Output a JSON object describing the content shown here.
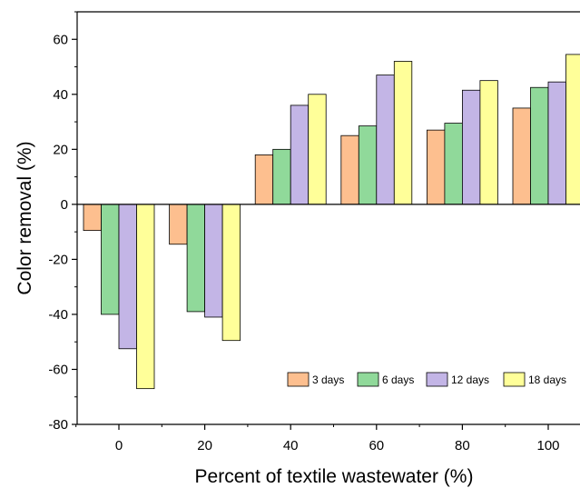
{
  "chart_data": {
    "type": "bar",
    "title": "",
    "xlabel": "Percent of textile wastewater (%)",
    "ylabel": "Color removal (%)",
    "ylim": [
      -80,
      70
    ],
    "yticks": [
      -80,
      -60,
      -40,
      -20,
      0,
      20,
      40,
      60
    ],
    "categories": [
      "0",
      "20",
      "40",
      "60",
      "80",
      "100"
    ],
    "series": [
      {
        "name": "3 days",
        "color": "#FDBF8F",
        "values": [
          -9.5,
          -14.5,
          18,
          25,
          27,
          35
        ]
      },
      {
        "name": "6 days",
        "color": "#90D99A",
        "values": [
          -40,
          -39,
          20,
          28.5,
          29.5,
          42.5
        ]
      },
      {
        "name": "12 days",
        "color": "#C3B5E6",
        "values": [
          -52.5,
          -41,
          36,
          47,
          41.5,
          44.5
        ]
      },
      {
        "name": "18 days",
        "color": "#FFFF99",
        "values": [
          -67,
          -49.5,
          40,
          52,
          45,
          54.5
        ]
      }
    ],
    "legend_position": "bottom-right",
    "grid": false
  }
}
